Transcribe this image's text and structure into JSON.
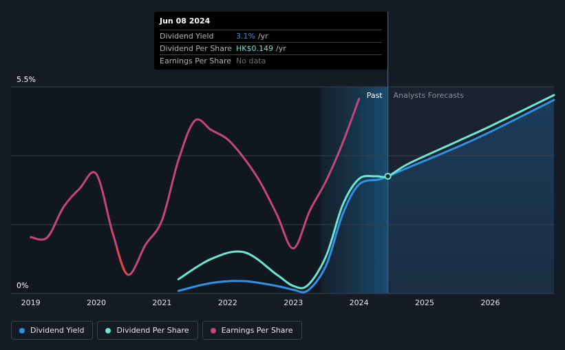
{
  "tooltip": {
    "date": "Jun 08 2024",
    "rows": [
      {
        "name": "Dividend Yield",
        "value": "3.1%",
        "unit": "/yr",
        "color": "#2e93e6"
      },
      {
        "name": "Dividend Per Share",
        "value": "HK$0.149",
        "unit": "/yr",
        "color": "#6ee7d2"
      },
      {
        "name": "Earnings Per Share",
        "value": "No data",
        "unit": ""
      }
    ]
  },
  "legend": [
    {
      "label": "Dividend Yield",
      "color": "#2e93e6"
    },
    {
      "label": "Dividend Per Share",
      "color": "#6ee7d2"
    },
    {
      "label": "Earnings Per Share",
      "color": "#c5467e"
    }
  ],
  "chart_data": {
    "type": "line",
    "y_top_label": "5.5%",
    "y_bottom_label": "0%",
    "ylim": [
      0,
      5.5
    ],
    "xlim": [
      2018.7,
      2026.97
    ],
    "x_ticks": [
      "2019",
      "2020",
      "2021",
      "2022",
      "2023",
      "2024",
      "2025",
      "2026"
    ],
    "past_label": "Past",
    "forecast_label": "Analysts Forecasts",
    "forecast_start": 2024.44,
    "shade_start": 2023.42,
    "series": [
      {
        "name": "Earnings Per Share",
        "color": "#c5467e",
        "low_color": "#e0463c",
        "points": [
          [
            2019.0,
            1.5
          ],
          [
            2019.25,
            1.49
          ],
          [
            2019.5,
            2.3
          ],
          [
            2019.75,
            2.8
          ],
          [
            2020.0,
            3.18
          ],
          [
            2020.25,
            1.6
          ],
          [
            2020.48,
            0.5
          ],
          [
            2020.75,
            1.3
          ],
          [
            2021.0,
            1.95
          ],
          [
            2021.25,
            3.55
          ],
          [
            2021.5,
            4.6
          ],
          [
            2021.75,
            4.35
          ],
          [
            2022.0,
            4.1
          ],
          [
            2022.25,
            3.6
          ],
          [
            2022.5,
            2.95
          ],
          [
            2022.75,
            2.1
          ],
          [
            2023.0,
            1.2
          ],
          [
            2023.25,
            2.2
          ],
          [
            2023.5,
            3.0
          ],
          [
            2023.75,
            4.0
          ],
          [
            2024.0,
            5.18
          ]
        ]
      },
      {
        "name": "Dividend Yield",
        "color": "#2e93e6",
        "points": [
          [
            2021.25,
            0.07
          ],
          [
            2021.75,
            0.28
          ],
          [
            2022.25,
            0.33
          ],
          [
            2022.75,
            0.2
          ],
          [
            2023.0,
            0.1
          ],
          [
            2023.22,
            0.08
          ],
          [
            2023.5,
            0.75
          ],
          [
            2023.75,
            2.1
          ],
          [
            2024.0,
            2.9
          ],
          [
            2024.3,
            3.03
          ],
          [
            2024.44,
            3.12
          ],
          [
            2024.75,
            3.35
          ],
          [
            2025.5,
            3.9
          ],
          [
            2026.0,
            4.3
          ],
          [
            2026.97,
            5.15
          ]
        ],
        "forecast_area": true
      },
      {
        "name": "Dividend Per Share",
        "color": "#6ee7d2",
        "points": [
          [
            2021.25,
            0.38
          ],
          [
            2021.75,
            0.92
          ],
          [
            2022.25,
            1.1
          ],
          [
            2022.75,
            0.5
          ],
          [
            2023.0,
            0.2
          ],
          [
            2023.22,
            0.22
          ],
          [
            2023.5,
            1.0
          ],
          [
            2023.75,
            2.35
          ],
          [
            2024.0,
            3.05
          ],
          [
            2024.25,
            3.12
          ],
          [
            2024.44,
            3.12
          ],
          [
            2024.75,
            3.45
          ],
          [
            2025.5,
            4.05
          ],
          [
            2026.0,
            4.45
          ],
          [
            2026.97,
            5.28
          ]
        ]
      }
    ]
  }
}
